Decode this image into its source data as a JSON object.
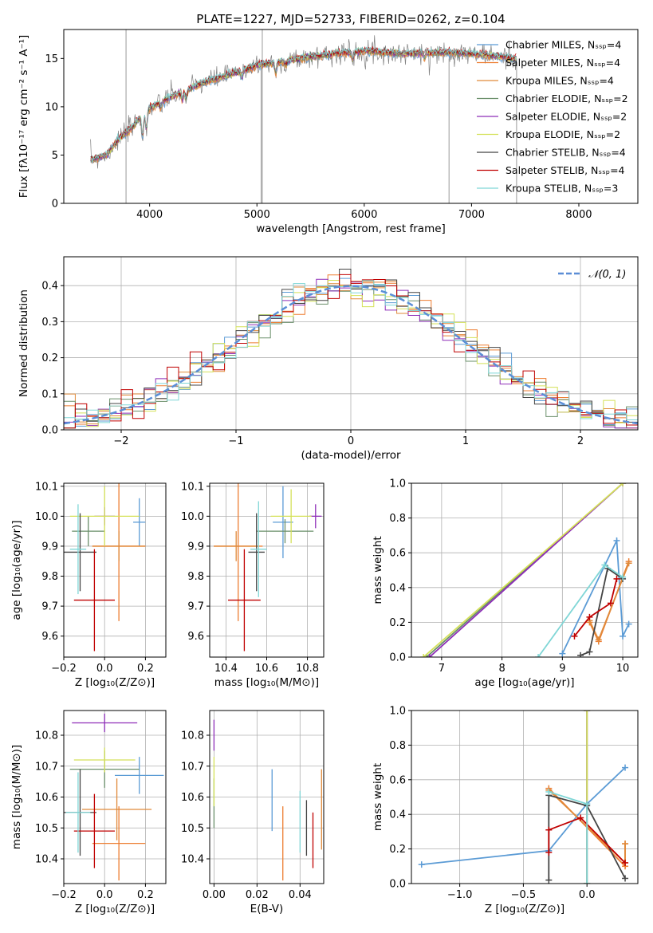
{
  "figure": {
    "title": "PLATE=1227, MJD=52733, FIBERID=0262, z=0.104"
  },
  "model_colors": {
    "Chabrier MILES": "#5b9bd5",
    "Salpeter MILES": "#ed7d31",
    "Kroupa MILES": "#e08a3a",
    "Chabrier ELODIE": "#6a8f6a",
    "Salpeter ELODIE": "#8e2eb8",
    "Kroupa ELODIE": "#d4e157",
    "Chabrier STELIB": "#444444",
    "Salpeter STELIB": "#c00000",
    "Kroupa STELIB": "#7fd6d6",
    "data": "#808080",
    "normal": "#5b8ed6"
  },
  "chart_data": [
    {
      "id": "spectrum",
      "type": "line",
      "title": "PLATE=1227, MJD=52733, FIBERID=0262, z=0.104",
      "xlabel": "wavelength [Angstrom, rest frame]",
      "ylabel": "Flux [fλ10⁻¹⁷ erg cm⁻² s⁻¹ A⁻¹]",
      "xlim": [
        3200,
        8550
      ],
      "ylim": [
        0,
        18
      ],
      "xticks": [
        4000,
        5000,
        6000,
        7000,
        8000
      ],
      "yticks": [
        0,
        5,
        10,
        15
      ],
      "grid": false,
      "legend": "upper-right",
      "legend_entries": [
        "Chabrier MILES, N_SSP=4",
        "Salpeter MILES, N_SSP=4",
        "Kroupa MILES, N_SSP=4",
        "Chabrier ELODIE, N_SSP=2",
        "Salpeter ELODIE, N_SSP=2",
        "Kroupa ELODIE, N_SSP=2",
        "Chabrier STELIB, N_SSP=4",
        "Salpeter STELIB, N_SSP=4",
        "Kroupa STELIB, N_SSP=3"
      ],
      "continuum_x": [
        3450,
        3600,
        3700,
        3850,
        3950,
        4100,
        4300,
        4500,
        4800,
        5000,
        5200,
        5400,
        5600,
        5800,
        6000,
        6200,
        6400,
        6600,
        6800,
        7000,
        7200,
        7400
      ],
      "continuum_y": [
        4.5,
        5.0,
        6.5,
        8.0,
        9.5,
        10.5,
        11.5,
        12.5,
        13.5,
        14.3,
        14.6,
        15.0,
        15.3,
        15.6,
        15.8,
        15.6,
        15.5,
        15.6,
        15.6,
        15.5,
        15.3,
        15.0
      ]
    },
    {
      "id": "residuals",
      "type": "line",
      "xlabel": "(data-model)/error",
      "ylabel": "Normed distribution",
      "xlim": [
        -2.5,
        2.5
      ],
      "ylim": [
        0,
        0.48
      ],
      "xticks": [
        -2,
        -1,
        0,
        1,
        2
      ],
      "yticks": [
        0.0,
        0.1,
        0.2,
        0.3,
        0.4
      ],
      "grid": true,
      "legend": "upper-right",
      "legend_entries": [
        "𝒩(0, 1)"
      ]
    },
    {
      "id": "age-vs-Z",
      "type": "scatter",
      "xlabel": "Z [log₁₀(Z/Z⊙)]",
      "ylabel": "age  [log₁₀(age/yr)]",
      "xlim": [
        -0.2,
        0.3
      ],
      "ylim": [
        9.53,
        10.11
      ],
      "xticks": [
        -0.2,
        0.0,
        0.2
      ],
      "yticks": [
        9.6,
        9.7,
        9.8,
        9.9,
        10.0,
        10.1
      ],
      "grid": true,
      "points": [
        {
          "model": "Chabrier MILES",
          "x": 0.17,
          "y": 9.98,
          "xerr": 0.03,
          "yerr": 0.08
        },
        {
          "model": "Salpeter MILES",
          "x": 0.07,
          "y": 9.9,
          "xerr": 0.13,
          "yerr": 0.25
        },
        {
          "model": "Kroupa MILES",
          "x": 0.07,
          "y": 9.9,
          "xerr": 0.13,
          "yerr": 0.05
        },
        {
          "model": "Chabrier ELODIE",
          "x": -0.08,
          "y": 9.95,
          "xerr": 0.08,
          "yerr": 0.05
        },
        {
          "model": "Salpeter ELODIE",
          "x": 0.0,
          "y": 10.0,
          "xerr": 0.05,
          "yerr": 0.03
        },
        {
          "model": "Kroupa ELODIE",
          "x": 0.0,
          "y": 10.0,
          "xerr": 0.17,
          "yerr": 0.1
        },
        {
          "model": "Chabrier STELIB",
          "x": -0.12,
          "y": 9.88,
          "xerr": 0.08,
          "yerr": 0.13
        },
        {
          "model": "Salpeter STELIB",
          "x": -0.05,
          "y": 9.72,
          "xerr": 0.1,
          "yerr": 0.17
        },
        {
          "model": "Kroupa STELIB",
          "x": -0.13,
          "y": 9.89,
          "xerr": 0.04,
          "yerr": 0.15
        }
      ]
    },
    {
      "id": "age-vs-mass",
      "type": "scatter",
      "xlabel": "mass [log₁₀(M/M⊙)]",
      "ylabel": "",
      "xlim": [
        10.32,
        10.88
      ],
      "ylim": [
        9.53,
        10.11
      ],
      "xticks": [
        10.4,
        10.6,
        10.8
      ],
      "yticks": [
        9.6,
        9.7,
        9.8,
        9.9,
        10.0,
        10.1
      ],
      "grid": true,
      "points": [
        {
          "model": "Chabrier MILES",
          "x": 10.68,
          "y": 9.98,
          "xerr": 0.05,
          "yerr": 0.12
        },
        {
          "model": "Salpeter MILES",
          "x": 10.46,
          "y": 9.9,
          "xerr": 0.12,
          "yerr": 0.25
        },
        {
          "model": "Kroupa MILES",
          "x": 10.45,
          "y": 9.9,
          "xerr": 0.11,
          "yerr": 0.05
        },
        {
          "model": "Chabrier ELODIE",
          "x": 10.69,
          "y": 9.95,
          "xerr": 0.14,
          "yerr": 0.04
        },
        {
          "model": "Salpeter ELODIE",
          "x": 10.84,
          "y": 10.0,
          "xerr": 0.03,
          "yerr": 0.04
        },
        {
          "model": "Kroupa ELODIE",
          "x": 10.72,
          "y": 10.0,
          "xerr": 0.1,
          "yerr": 0.09
        },
        {
          "model": "Chabrier STELIB",
          "x": 10.55,
          "y": 9.88,
          "xerr": 0.04,
          "yerr": 0.13
        },
        {
          "model": "Salpeter STELIB",
          "x": 10.49,
          "y": 9.72,
          "xerr": 0.08,
          "yerr": 0.17
        },
        {
          "model": "Kroupa STELIB",
          "x": 10.56,
          "y": 9.89,
          "xerr": 0.04,
          "yerr": 0.16
        }
      ]
    },
    {
      "id": "weight-vs-age",
      "type": "line",
      "xlabel": "age  [log₁₀(age/yr)]",
      "ylabel": "mass weight",
      "xlim": [
        6.5,
        10.25
      ],
      "ylim": [
        0,
        1
      ],
      "xticks": [
        7,
        8,
        9,
        10
      ],
      "yticks": [
        0.0,
        0.2,
        0.4,
        0.6,
        0.8,
        1.0
      ],
      "grid": true,
      "series": [
        {
          "model": "Chabrier MILES",
          "x": [
            9.0,
            9.9,
            10.0,
            10.1
          ],
          "y": [
            0.02,
            0.67,
            0.12,
            0.19
          ]
        },
        {
          "model": "Salpeter MILES",
          "x": [
            9.45,
            9.6,
            10.1
          ],
          "y": [
            0.2,
            0.09,
            0.55
          ]
        },
        {
          "model": "Kroupa MILES",
          "x": [
            9.45,
            9.6,
            10.1
          ],
          "y": [
            0.21,
            0.1,
            0.54
          ]
        },
        {
          "model": "Chabrier ELODIE",
          "x": [
            6.75,
            10.0
          ],
          "y": [
            0.0,
            1.0
          ]
        },
        {
          "model": "Salpeter ELODIE",
          "x": [
            6.8,
            10.0
          ],
          "y": [
            0.0,
            1.0
          ]
        },
        {
          "model": "Kroupa ELODIE",
          "x": [
            6.7,
            10.0
          ],
          "y": [
            0.0,
            1.0
          ]
        },
        {
          "model": "Chabrier STELIB",
          "x": [
            9.3,
            9.45,
            9.75,
            10.0
          ],
          "y": [
            0.01,
            0.03,
            0.51,
            0.45
          ]
        },
        {
          "model": "Salpeter STELIB",
          "x": [
            9.2,
            9.45,
            9.8,
            9.9
          ],
          "y": [
            0.12,
            0.23,
            0.31,
            0.45
          ]
        },
        {
          "model": "Kroupa STELIB",
          "x": [
            8.6,
            9.7,
            10.0
          ],
          "y": [
            0.0,
            0.53,
            0.46
          ]
        }
      ]
    },
    {
      "id": "mass-vs-Z",
      "type": "scatter",
      "xlabel": "Z [log₁₀(Z/Z⊙)]",
      "ylabel": "mass [log₁₀(M/M⊙)]",
      "xlim": [
        -0.2,
        0.3
      ],
      "ylim": [
        10.32,
        10.88
      ],
      "xticks": [
        -0.2,
        0.0,
        0.2
      ],
      "yticks": [
        10.4,
        10.5,
        10.6,
        10.7,
        10.8
      ],
      "grid": true,
      "points": [
        {
          "model": "Chabrier MILES",
          "x": 0.17,
          "y": 10.67,
          "xerr": 0.12,
          "yerr": 0.06
        },
        {
          "model": "Salpeter MILES",
          "x": 0.07,
          "y": 10.45,
          "xerr": 0.13,
          "yerr": 0.12
        },
        {
          "model": "Kroupa MILES",
          "x": 0.06,
          "y": 10.56,
          "xerr": 0.17,
          "yerr": 0.1
        },
        {
          "model": "Chabrier ELODIE",
          "x": 0.0,
          "y": 10.69,
          "xerr": 0.17,
          "yerr": 0.06
        },
        {
          "model": "Salpeter ELODIE",
          "x": 0.0,
          "y": 10.84,
          "xerr": 0.16,
          "yerr": 0.03
        },
        {
          "model": "Kroupa ELODIE",
          "x": 0.0,
          "y": 10.72,
          "xerr": 0.15,
          "yerr": 0.04
        },
        {
          "model": "Chabrier STELIB",
          "x": -0.12,
          "y": 10.55,
          "xerr": 0.08,
          "yerr": 0.14
        },
        {
          "model": "Salpeter STELIB",
          "x": -0.05,
          "y": 10.49,
          "xerr": 0.1,
          "yerr": 0.12
        },
        {
          "model": "Kroupa STELIB",
          "x": -0.13,
          "y": 10.55,
          "xerr": 0.06,
          "yerr": 0.13
        }
      ]
    },
    {
      "id": "mass-vs-ebv",
      "type": "scatter",
      "xlabel": "E(B-V)",
      "ylabel": "",
      "xlim": [
        -0.002,
        0.051
      ],
      "ylim": [
        10.32,
        10.88
      ],
      "xticks": [
        0.0,
        0.02,
        0.04
      ],
      "yticks": [
        10.4,
        10.5,
        10.6,
        10.7,
        10.8
      ],
      "grid": true,
      "points": [
        {
          "model": "Chabrier MILES",
          "x": 0.027,
          "y": 10.59,
          "yerr": 0.1
        },
        {
          "model": "Salpeter MILES",
          "x": 0.032,
          "y": 10.45,
          "yerr": 0.12
        },
        {
          "model": "Kroupa MILES",
          "x": 0.05,
          "y": 10.56,
          "yerr": 0.13
        },
        {
          "model": "Chabrier ELODIE",
          "x": 0.0,
          "y": 10.58,
          "yerr": 0.08
        },
        {
          "model": "Salpeter ELODIE",
          "x": 0.0,
          "y": 10.8,
          "yerr": 0.05
        },
        {
          "model": "Kroupa ELODIE",
          "x": 0.0,
          "y": 10.65,
          "yerr": 0.08
        },
        {
          "model": "Chabrier STELIB",
          "x": 0.043,
          "y": 10.5,
          "yerr": 0.09
        },
        {
          "model": "Salpeter STELIB",
          "x": 0.046,
          "y": 10.46,
          "yerr": 0.09
        },
        {
          "model": "Kroupa STELIB",
          "x": 0.04,
          "y": 10.52,
          "yerr": 0.1
        }
      ]
    },
    {
      "id": "weight-vs-Z",
      "type": "line",
      "xlabel": "Z [log₁₀(Z/Z⊙)]",
      "ylabel": "mass weight",
      "xlim": [
        -1.38,
        0.4
      ],
      "ylim": [
        0,
        1
      ],
      "xticks": [
        -1.0,
        -0.5,
        0.0
      ],
      "yticks": [
        0.0,
        0.2,
        0.4,
        0.6,
        0.8,
        1.0
      ],
      "grid": true,
      "series": [
        {
          "model": "Chabrier MILES",
          "x": [
            -1.3,
            -0.3,
            0.0,
            0.3
          ],
          "y": [
            0.11,
            0.19,
            0.46,
            0.67
          ]
        },
        {
          "model": "Salpeter MILES",
          "x": [
            -0.3,
            0.3,
            0.3
          ],
          "y": [
            0.55,
            0.1,
            0.23
          ]
        },
        {
          "model": "Kroupa MILES",
          "x": [
            -0.3,
            0.3,
            0.3
          ],
          "y": [
            0.54,
            0.12,
            0.23
          ]
        },
        {
          "model": "Chabrier ELODIE",
          "x": [
            0.0,
            0.0
          ],
          "y": [
            0.0,
            1.0
          ]
        },
        {
          "model": "Salpeter ELODIE",
          "x": [
            0.0,
            0.0
          ],
          "y": [
            0.0,
            1.0
          ]
        },
        {
          "model": "Kroupa ELODIE",
          "x": [
            0.0,
            0.0
          ],
          "y": [
            0.0,
            1.0
          ]
        },
        {
          "model": "Chabrier STELIB",
          "x": [
            -0.3,
            -0.3,
            0.0,
            0.3
          ],
          "y": [
            0.02,
            0.51,
            0.45,
            0.03
          ]
        },
        {
          "model": "Salpeter STELIB",
          "x": [
            -0.3,
            -0.3,
            -0.05,
            0.3
          ],
          "y": [
            0.18,
            0.31,
            0.38,
            0.12
          ]
        },
        {
          "model": "Kroupa STELIB",
          "x": [
            -0.3,
            0.0,
            0.0
          ],
          "y": [
            0.53,
            0.46,
            0.0
          ]
        }
      ]
    }
  ]
}
